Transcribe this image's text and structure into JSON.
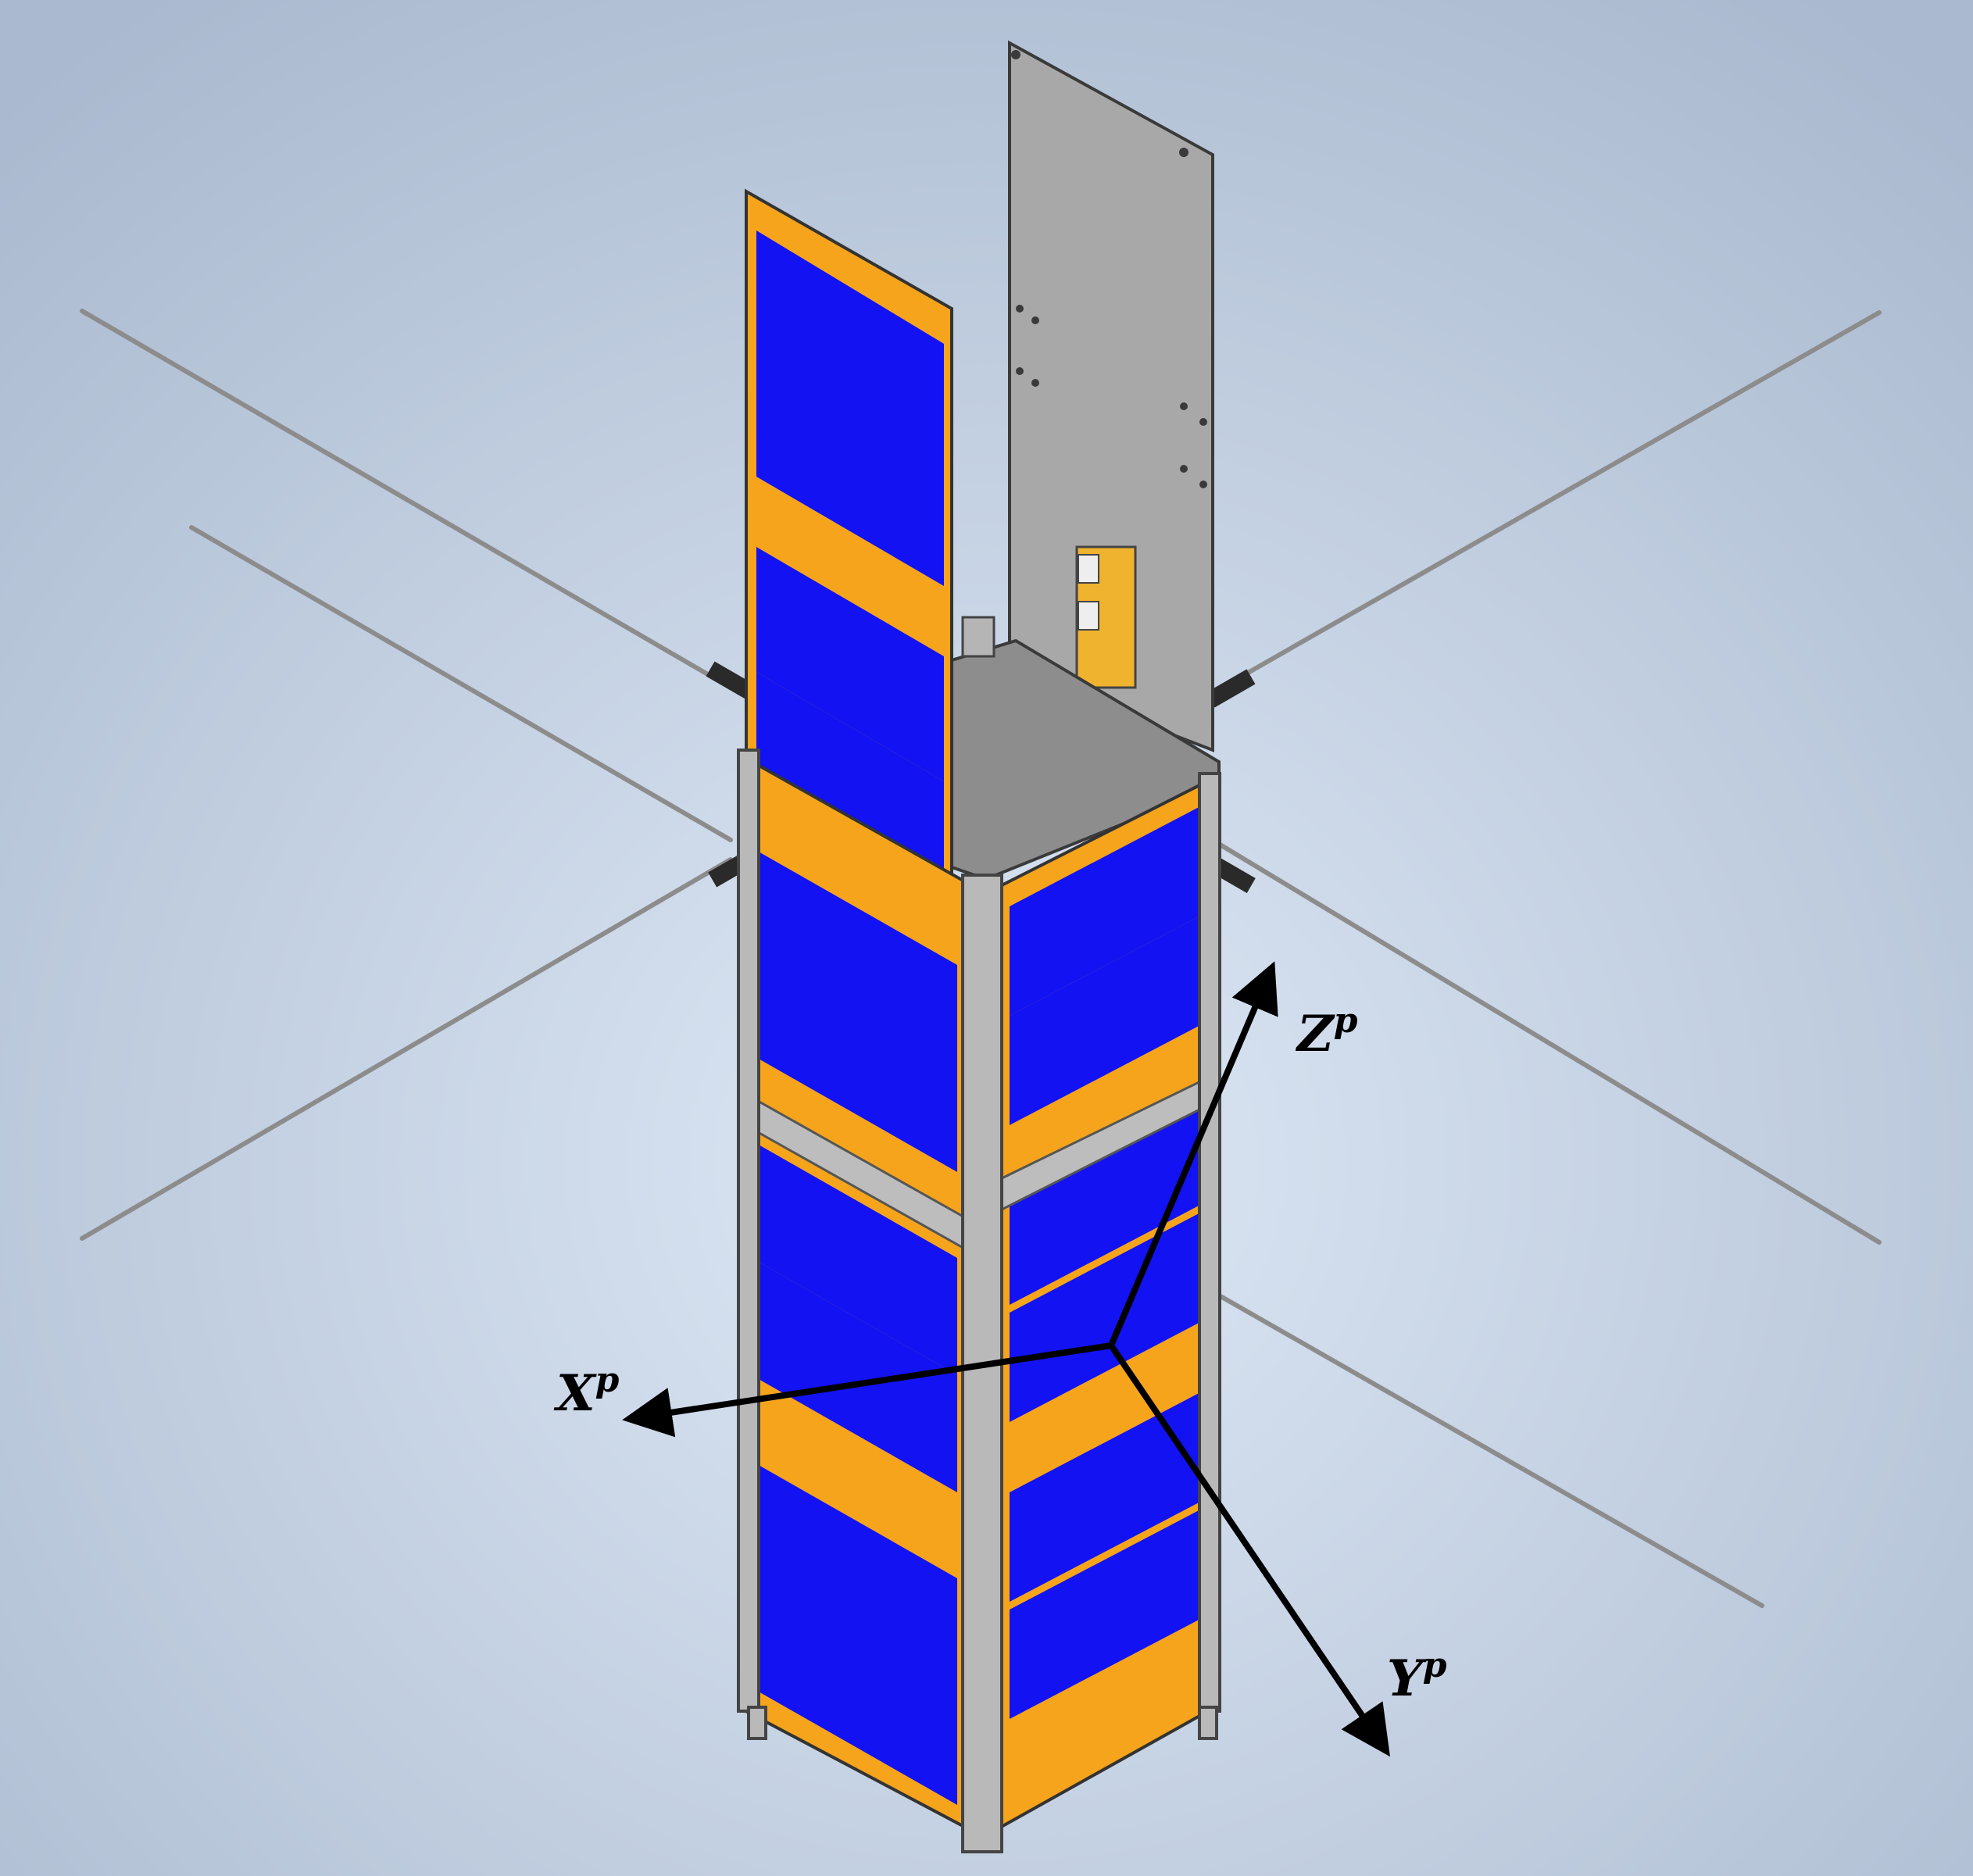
{
  "diagram": {
    "axes": [
      {
        "id": "x",
        "letter": "X",
        "superscript": "p"
      },
      {
        "id": "y",
        "letter": "Y",
        "superscript": "p"
      },
      {
        "id": "z",
        "letter": "Z",
        "superscript": "p"
      }
    ],
    "colors": {
      "background_center": "#dbe6f4",
      "background_edge": "#aebdd2",
      "solar_cell": "#1212f2",
      "panel_substrate": "#f5a41c",
      "frame": "#b7b7b7",
      "top_plate": "#8e8e8e",
      "radiator_panel": "#a9a9a9",
      "antenna": "#8a8a8a",
      "axis_arrow": "#000000"
    }
  }
}
